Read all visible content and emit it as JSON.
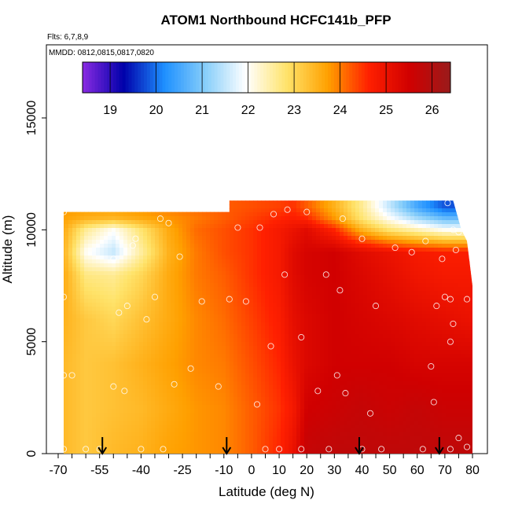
{
  "chart_data": {
    "type": "heatmap",
    "title": "ATOM1 Northbound HCFC141b_PFP",
    "subtitle_flights": "Flts: 6,7,8,9",
    "subtitle_dates": "MMDD: 0812,0815,0817,0820",
    "xlabel": "Latitude (deg N)",
    "ylabel": "Altitude (m)",
    "xlim": [
      -70,
      80
    ],
    "ylim": [
      0,
      17500
    ],
    "x_ticks": [
      -70,
      -55,
      -40,
      -25,
      -10,
      0,
      10,
      20,
      30,
      40,
      50,
      60,
      70,
      80
    ],
    "x_tick_labels": [
      "-70",
      "-55",
      "-40",
      "-25",
      "-10",
      "0",
      "10",
      "20",
      "30",
      "40",
      "50",
      "60",
      "70",
      "80"
    ],
    "x_minor_step": 5,
    "y_ticks": [
      0,
      5000,
      10000,
      15000
    ],
    "y_tick_labels": [
      "0",
      "5000",
      "10000",
      "15000"
    ],
    "colorbar": {
      "ticks": [
        19,
        20,
        21,
        22,
        23,
        24,
        25,
        26
      ],
      "tick_labels": [
        "19",
        "20",
        "21",
        "22",
        "23",
        "24",
        "25",
        "26"
      ],
      "range": [
        18.4,
        26.4
      ],
      "colors": [
        "#8a2be2",
        "#0000aa",
        "#1e90ff",
        "#87cefa",
        "#ffffff",
        "#ffe36a",
        "#ffa000",
        "#ff2000",
        "#d00000",
        "#9a1b1b"
      ]
    },
    "arrows_latitude": [
      -54,
      -9,
      39,
      68
    ],
    "domain_outline": [
      [
        -68,
        0
      ],
      [
        80,
        0
      ],
      [
        80,
        7500
      ],
      [
        78,
        9500
      ],
      [
        76,
        10000
      ],
      [
        73,
        11300
      ],
      [
        -8,
        11300
      ],
      [
        -8,
        10800
      ],
      [
        -68,
        10800
      ]
    ],
    "field_nodes": {
      "lat": [
        -68,
        -60,
        -50,
        -40,
        -30,
        -20,
        -10,
        0,
        10,
        15,
        20,
        30,
        40,
        50,
        60,
        70,
        80
      ],
      "alt": [
        0,
        2000,
        4000,
        6000,
        8000,
        9000,
        10000,
        10500,
        11000
      ],
      "values": [
        [
          23.4,
          23.2,
          23.4,
          23.5,
          23.7,
          23.8,
          23.9,
          24.2,
          24.6,
          25.0,
          25.7,
          25.8,
          25.8,
          25.8,
          25.8,
          25.8,
          25.8
        ],
        [
          23.4,
          23.2,
          23.3,
          23.4,
          23.6,
          23.8,
          23.9,
          24.2,
          24.5,
          24.8,
          25.5,
          25.6,
          25.7,
          25.6,
          25.7,
          25.6,
          25.6
        ],
        [
          23.4,
          23.2,
          23.3,
          23.5,
          23.7,
          23.9,
          24.0,
          24.3,
          24.6,
          25.0,
          25.3,
          25.5,
          25.5,
          25.5,
          25.4,
          25.4,
          25.4
        ],
        [
          23.5,
          23.2,
          23.0,
          23.3,
          23.6,
          23.9,
          24.1,
          24.4,
          24.7,
          25.1,
          25.3,
          25.5,
          25.4,
          25.3,
          25.2,
          25.1,
          25.0
        ],
        [
          23.6,
          22.7,
          22.6,
          23.0,
          23.6,
          24.0,
          24.2,
          24.5,
          24.8,
          25.2,
          25.4,
          25.5,
          25.3,
          25.1,
          24.9,
          24.8,
          24.8
        ],
        [
          23.5,
          22.0,
          21.5,
          22.5,
          23.5,
          24.0,
          24.3,
          24.5,
          24.8,
          25.2,
          25.4,
          25.5,
          25.2,
          25.0,
          24.8,
          24.7,
          24.7
        ],
        [
          23.6,
          22.6,
          22.0,
          22.8,
          23.6,
          24.1,
          24.3,
          24.5,
          24.8,
          25.0,
          25.2,
          24.6,
          23.5,
          22.8,
          22.4,
          22.0,
          22.0
        ],
        [
          23.7,
          23.5,
          23.4,
          23.6,
          23.8,
          24.0,
          24.2,
          24.4,
          24.6,
          24.7,
          24.6,
          23.8,
          22.8,
          22.0,
          21.3,
          20.8,
          20.8
        ],
        [
          23.8,
          23.8,
          23.8,
          23.9,
          24.0,
          24.1,
          24.2,
          24.3,
          24.4,
          24.5,
          24.2,
          23.5,
          22.6,
          21.5,
          20.5,
          19.8,
          19.8
        ]
      ]
    },
    "sample_points": [
      [
        -68,
        10800
      ],
      [
        -68,
        7000
      ],
      [
        -68,
        3500
      ],
      [
        -68,
        200
      ],
      [
        -65,
        3500
      ],
      [
        -60,
        200
      ],
      [
        -55,
        200
      ],
      [
        -50,
        3000
      ],
      [
        -48,
        6300
      ],
      [
        -46,
        2800
      ],
      [
        -45,
        6600
      ],
      [
        -42,
        9600
      ],
      [
        -43,
        9300
      ],
      [
        -50,
        8700
      ],
      [
        -38,
        6000
      ],
      [
        -35,
        7000
      ],
      [
        -33,
        10500
      ],
      [
        -30,
        10300
      ],
      [
        -28,
        3100
      ],
      [
        -26,
        8800
      ],
      [
        -22,
        3800
      ],
      [
        -18,
        6800
      ],
      [
        -16,
        11300
      ],
      [
        -12,
        3000
      ],
      [
        -10,
        11000
      ],
      [
        -8,
        6900
      ],
      [
        -5,
        10100
      ],
      [
        -2,
        6800
      ],
      [
        2,
        2200
      ],
      [
        3,
        10100
      ],
      [
        5,
        200
      ],
      [
        7,
        4800
      ],
      [
        8,
        10700
      ],
      [
        10,
        200
      ],
      [
        12,
        8000
      ],
      [
        13,
        10900
      ],
      [
        18,
        5200
      ],
      [
        20,
        10800
      ],
      [
        24,
        2800
      ],
      [
        27,
        8000
      ],
      [
        31,
        3500
      ],
      [
        32,
        7300
      ],
      [
        33,
        10500
      ],
      [
        34,
        2700
      ],
      [
        40,
        9600
      ],
      [
        43,
        1800
      ],
      [
        45,
        6600
      ],
      [
        47,
        200
      ],
      [
        52,
        9200
      ],
      [
        58,
        9000
      ],
      [
        63,
        9500
      ],
      [
        65,
        3900
      ],
      [
        66,
        2300
      ],
      [
        67,
        6600
      ],
      [
        69,
        8700
      ],
      [
        70,
        7000
      ],
      [
        71,
        11200
      ],
      [
        72,
        6900
      ],
      [
        72,
        5000
      ],
      [
        73,
        10000
      ],
      [
        73,
        5800
      ],
      [
        74,
        9100
      ],
      [
        75,
        9900
      ],
      [
        75,
        700
      ],
      [
        78,
        6900
      ],
      [
        78,
        300
      ],
      [
        72,
        200
      ],
      [
        62,
        200
      ],
      [
        40,
        200
      ],
      [
        28,
        200
      ],
      [
        18,
        200
      ],
      [
        -40,
        200
      ],
      [
        -32,
        200
      ]
    ]
  }
}
